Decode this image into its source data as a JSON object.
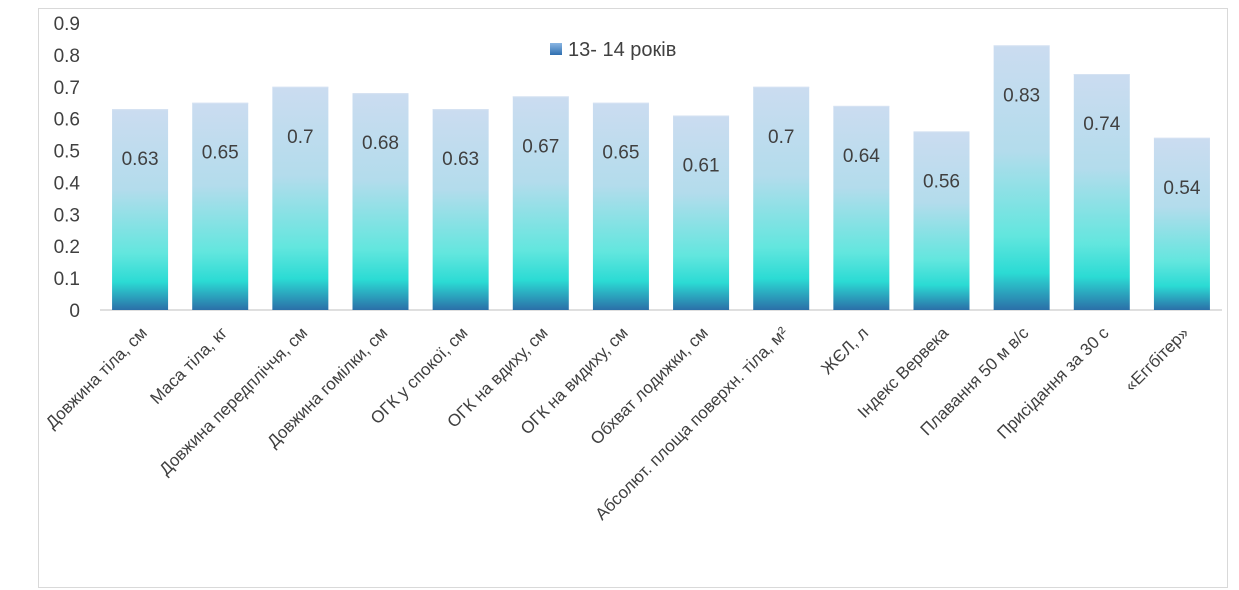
{
  "chart_data": {
    "type": "bar",
    "categories": [
      "Довжина тіла, см",
      "Маса тіла, кг",
      "Довжина передпліччя, см",
      "Довжина гомілки, см",
      "ОГК у спокої, см",
      "ОГК на вдиху, см",
      "ОГК на видиху, см",
      "Обхват лодижки, см",
      "Абсолют. площа поверхн. тіла, м²",
      "ЖЄЛ, л",
      "Індекс Вервека",
      "Плавання 50 м в/с",
      "Присідання за 30 с",
      "«Еггбітер»"
    ],
    "series": [
      {
        "name": "13- 14 років",
        "values": [
          0.63,
          0.65,
          0.7,
          0.68,
          0.63,
          0.67,
          0.65,
          0.61,
          0.7,
          0.64,
          0.56,
          0.83,
          0.74,
          0.54
        ]
      }
    ],
    "ylim": [
      0,
      0.9
    ],
    "yticks": [
      "0",
      "0.1",
      "0.2",
      "0.3",
      "0.4",
      "0.5",
      "0.6",
      "0.7",
      "0.8",
      "0.9"
    ],
    "ytick_values": [
      0,
      0.1,
      0.2,
      0.3,
      0.4,
      0.5,
      0.6,
      0.7,
      0.8,
      0.9
    ],
    "data_labels": [
      "0.63",
      "0.65",
      "0.7",
      "0.68",
      "0.63",
      "0.67",
      "0.65",
      "0.61",
      "0.7",
      "0.64",
      "0.56",
      "0.83",
      "0.74",
      "0.54"
    ],
    "grid": false,
    "legend_position": "top-center",
    "colors": {
      "bar_top": "#c7d9ee",
      "bar_mid": "#3fe0d6",
      "bar_base": "#2b6fa8",
      "legend_swatch": "#4a86c5",
      "axis": "#bfbfbf",
      "text": "#404040"
    }
  }
}
